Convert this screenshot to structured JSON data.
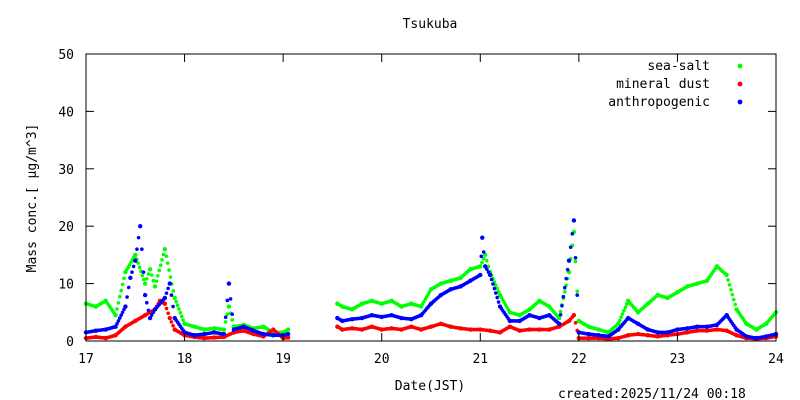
{
  "chart_data": {
    "type": "scatter",
    "title": "Tsukuba",
    "xlabel": "Date(JST)",
    "ylabel": "Mass conc.[ μg/m^3]",
    "xlim": [
      17,
      24
    ],
    "ylim": [
      0,
      50
    ],
    "x_ticks": [
      "17",
      "18",
      "19",
      "20",
      "21",
      "22",
      "23",
      "24"
    ],
    "y_ticks": [
      "0",
      "10",
      "20",
      "30",
      "40",
      "50"
    ],
    "grid": false,
    "legend_position": "top-right",
    "series": [
      {
        "name": "sea-salt",
        "color": "#00ff00",
        "points": [
          [
            17.0,
            6.5
          ],
          [
            17.1,
            6.0
          ],
          [
            17.2,
            7.0
          ],
          [
            17.3,
            4.5
          ],
          [
            17.4,
            12.0
          ],
          [
            17.5,
            15.0
          ],
          [
            17.6,
            10.0
          ],
          [
            17.65,
            12.5
          ],
          [
            17.7,
            9.5
          ],
          [
            17.8,
            16.0
          ],
          [
            17.9,
            7.5
          ],
          [
            18.0,
            3.0
          ],
          [
            18.1,
            2.5
          ],
          [
            18.2,
            2.0
          ],
          [
            18.3,
            2.2
          ],
          [
            18.4,
            2.0
          ],
          [
            18.45,
            6.0
          ],
          [
            18.5,
            2.5
          ],
          [
            18.6,
            2.8
          ],
          [
            18.7,
            2.2
          ],
          [
            18.8,
            2.5
          ],
          [
            18.9,
            1.5
          ],
          [
            19.0,
            1.5
          ],
          [
            19.05,
            2.0
          ],
          [
            19.55,
            6.5
          ],
          [
            19.6,
            6.0
          ],
          [
            19.7,
            5.5
          ],
          [
            19.8,
            6.5
          ],
          [
            19.9,
            7.0
          ],
          [
            20.0,
            6.5
          ],
          [
            20.1,
            7.0
          ],
          [
            20.2,
            6.0
          ],
          [
            20.3,
            6.5
          ],
          [
            20.4,
            6.0
          ],
          [
            20.5,
            9.0
          ],
          [
            20.6,
            10.0
          ],
          [
            20.7,
            10.5
          ],
          [
            20.8,
            11.0
          ],
          [
            20.9,
            12.5
          ],
          [
            21.0,
            13.0
          ],
          [
            21.05,
            15.0
          ],
          [
            21.1,
            12.0
          ],
          [
            21.2,
            8.0
          ],
          [
            21.3,
            5.0
          ],
          [
            21.4,
            4.5
          ],
          [
            21.5,
            5.5
          ],
          [
            21.6,
            7.0
          ],
          [
            21.7,
            6.0
          ],
          [
            21.8,
            4.0
          ],
          [
            21.9,
            12.0
          ],
          [
            21.95,
            19.0
          ],
          [
            22.0,
            3.5
          ],
          [
            22.1,
            2.5
          ],
          [
            22.2,
            2.0
          ],
          [
            22.3,
            1.5
          ],
          [
            22.4,
            3.0
          ],
          [
            22.5,
            7.0
          ],
          [
            22.6,
            5.0
          ],
          [
            22.7,
            6.5
          ],
          [
            22.8,
            8.0
          ],
          [
            22.9,
            7.5
          ],
          [
            23.0,
            8.5
          ],
          [
            23.1,
            9.5
          ],
          [
            23.2,
            10.0
          ],
          [
            23.3,
            10.5
          ],
          [
            23.4,
            13.0
          ],
          [
            23.5,
            11.5
          ],
          [
            23.6,
            5.5
          ],
          [
            23.7,
            3.0
          ],
          [
            23.8,
            2.0
          ],
          [
            23.9,
            3.0
          ],
          [
            24.0,
            5.0
          ]
        ]
      },
      {
        "name": "mineral dust",
        "color": "#ff0000",
        "points": [
          [
            17.0,
            0.5
          ],
          [
            17.1,
            0.7
          ],
          [
            17.2,
            0.5
          ],
          [
            17.3,
            1.0
          ],
          [
            17.4,
            2.5
          ],
          [
            17.5,
            3.5
          ],
          [
            17.6,
            4.5
          ],
          [
            17.7,
            5.5
          ],
          [
            17.75,
            7.0
          ],
          [
            17.8,
            6.5
          ],
          [
            17.85,
            4.0
          ],
          [
            17.9,
            2.0
          ],
          [
            18.0,
            1.0
          ],
          [
            18.1,
            0.7
          ],
          [
            18.2,
            0.5
          ],
          [
            18.3,
            0.6
          ],
          [
            18.4,
            0.7
          ],
          [
            18.5,
            1.5
          ],
          [
            18.6,
            1.8
          ],
          [
            18.7,
            1.2
          ],
          [
            18.8,
            0.8
          ],
          [
            18.9,
            2.0
          ],
          [
            19.0,
            0.5
          ],
          [
            19.05,
            0.6
          ],
          [
            19.55,
            2.5
          ],
          [
            19.6,
            2.0
          ],
          [
            19.7,
            2.2
          ],
          [
            19.8,
            2.0
          ],
          [
            19.9,
            2.5
          ],
          [
            20.0,
            2.0
          ],
          [
            20.1,
            2.2
          ],
          [
            20.2,
            2.0
          ],
          [
            20.3,
            2.5
          ],
          [
            20.4,
            2.0
          ],
          [
            20.5,
            2.5
          ],
          [
            20.6,
            3.0
          ],
          [
            20.7,
            2.5
          ],
          [
            20.8,
            2.2
          ],
          [
            20.9,
            2.0
          ],
          [
            21.0,
            2.0
          ],
          [
            21.1,
            1.8
          ],
          [
            21.2,
            1.5
          ],
          [
            21.3,
            2.5
          ],
          [
            21.4,
            1.8
          ],
          [
            21.5,
            2.0
          ],
          [
            21.6,
            2.0
          ],
          [
            21.7,
            2.0
          ],
          [
            21.8,
            2.5
          ],
          [
            21.9,
            3.5
          ],
          [
            21.95,
            4.5
          ],
          [
            22.0,
            0.5
          ],
          [
            22.1,
            0.5
          ],
          [
            22.2,
            0.5
          ],
          [
            22.3,
            0.4
          ],
          [
            22.4,
            0.5
          ],
          [
            22.5,
            1.0
          ],
          [
            22.6,
            1.2
          ],
          [
            22.7,
            1.0
          ],
          [
            22.8,
            0.8
          ],
          [
            22.9,
            1.0
          ],
          [
            23.0,
            1.2
          ],
          [
            23.1,
            1.5
          ],
          [
            23.2,
            1.8
          ],
          [
            23.3,
            1.8
          ],
          [
            23.4,
            2.0
          ],
          [
            23.5,
            1.8
          ],
          [
            23.6,
            1.0
          ],
          [
            23.7,
            0.5
          ],
          [
            23.8,
            0.4
          ],
          [
            23.9,
            0.5
          ],
          [
            24.0,
            0.8
          ]
        ]
      },
      {
        "name": "anthropogenic",
        "color": "#0000ff",
        "points": [
          [
            17.0,
            1.5
          ],
          [
            17.1,
            1.8
          ],
          [
            17.2,
            2.0
          ],
          [
            17.3,
            2.5
          ],
          [
            17.4,
            6.0
          ],
          [
            17.45,
            11.0
          ],
          [
            17.5,
            14.0
          ],
          [
            17.55,
            20.0
          ],
          [
            17.6,
            8.0
          ],
          [
            17.65,
            4.0
          ],
          [
            17.7,
            5.5
          ],
          [
            17.8,
            7.5
          ],
          [
            17.85,
            10.0
          ],
          [
            17.9,
            4.0
          ],
          [
            18.0,
            1.5
          ],
          [
            18.1,
            1.0
          ],
          [
            18.2,
            1.2
          ],
          [
            18.3,
            1.5
          ],
          [
            18.4,
            1.2
          ],
          [
            18.45,
            10.0
          ],
          [
            18.5,
            2.0
          ],
          [
            18.6,
            2.5
          ],
          [
            18.7,
            1.8
          ],
          [
            18.8,
            1.2
          ],
          [
            18.9,
            1.0
          ],
          [
            19.0,
            1.0
          ],
          [
            19.05,
            1.2
          ],
          [
            19.55,
            4.0
          ],
          [
            19.6,
            3.5
          ],
          [
            19.7,
            3.8
          ],
          [
            19.8,
            4.0
          ],
          [
            19.9,
            4.5
          ],
          [
            20.0,
            4.2
          ],
          [
            20.1,
            4.5
          ],
          [
            20.2,
            4.0
          ],
          [
            20.3,
            3.8
          ],
          [
            20.4,
            4.5
          ],
          [
            20.5,
            6.5
          ],
          [
            20.6,
            8.0
          ],
          [
            20.7,
            9.0
          ],
          [
            20.8,
            9.5
          ],
          [
            20.9,
            10.5
          ],
          [
            21.0,
            11.5
          ],
          [
            21.02,
            18.0
          ],
          [
            21.05,
            13.0
          ],
          [
            21.1,
            11.5
          ],
          [
            21.2,
            6.0
          ],
          [
            21.3,
            3.5
          ],
          [
            21.4,
            3.5
          ],
          [
            21.5,
            4.5
          ],
          [
            21.6,
            4.0
          ],
          [
            21.7,
            4.5
          ],
          [
            21.8,
            3.0
          ],
          [
            21.9,
            14.0
          ],
          [
            21.95,
            21.0
          ],
          [
            22.0,
            1.5
          ],
          [
            22.1,
            1.2
          ],
          [
            22.2,
            1.0
          ],
          [
            22.3,
            0.8
          ],
          [
            22.4,
            2.0
          ],
          [
            22.5,
            4.0
          ],
          [
            22.6,
            3.0
          ],
          [
            22.7,
            2.0
          ],
          [
            22.8,
            1.5
          ],
          [
            22.9,
            1.5
          ],
          [
            23.0,
            2.0
          ],
          [
            23.1,
            2.2
          ],
          [
            23.2,
            2.5
          ],
          [
            23.3,
            2.5
          ],
          [
            23.4,
            2.8
          ],
          [
            23.5,
            4.5
          ],
          [
            23.6,
            2.0
          ],
          [
            23.7,
            0.8
          ],
          [
            23.8,
            0.5
          ],
          [
            23.9,
            0.8
          ],
          [
            24.0,
            1.2
          ]
        ]
      }
    ],
    "footer_text": "created:2025/11/24 00:18"
  }
}
